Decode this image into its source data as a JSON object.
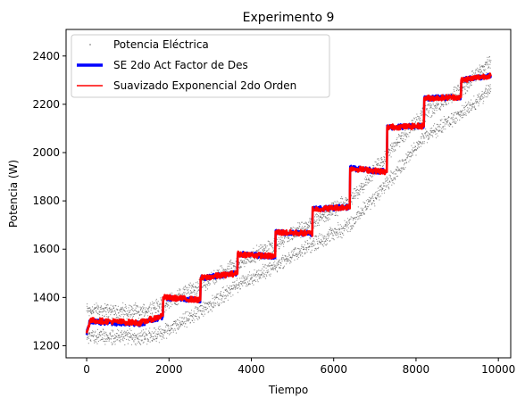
{
  "chart_data": {
    "type": "line",
    "title": "Experimento 9",
    "xlabel": "Tiempo",
    "ylabel": "Potencia (W)",
    "xlim": [
      -500,
      10300
    ],
    "ylim": [
      1150,
      2510
    ],
    "xticks": [
      0,
      2000,
      4000,
      6000,
      8000,
      10000
    ],
    "yticks": [
      1200,
      1400,
      1600,
      1800,
      2000,
      2200,
      2400
    ],
    "grid": false,
    "legend_position": "top-left",
    "step_starts": [
      0,
      1850,
      2760,
      3660,
      4580,
      5480,
      6390,
      7290,
      8190,
      9090
    ],
    "step_ends": [
      1850,
      2760,
      3660,
      4580,
      5480,
      6390,
      7290,
      8190,
      9090,
      9820
    ],
    "series": [
      {
        "name": "Potencia Eléctrica",
        "style": "scatter",
        "color": "#000000",
        "upper_band": [
          [
            0,
            1350
          ],
          [
            1300,
            1340
          ],
          [
            1850,
            1370
          ],
          [
            2760,
            1450
          ],
          [
            3660,
            1540
          ],
          [
            4580,
            1620
          ],
          [
            5480,
            1710
          ],
          [
            6390,
            1800
          ],
          [
            7290,
            1990
          ],
          [
            8190,
            2160
          ],
          [
            9090,
            2260
          ],
          [
            9820,
            2380
          ]
        ],
        "lower_band": [
          [
            0,
            1240
          ],
          [
            1300,
            1235
          ],
          [
            1850,
            1250
          ],
          [
            2760,
            1340
          ],
          [
            3660,
            1450
          ],
          [
            4580,
            1530
          ],
          [
            5480,
            1620
          ],
          [
            6390,
            1700
          ],
          [
            7290,
            1870
          ],
          [
            8190,
            2060
          ],
          [
            9090,
            2160
          ],
          [
            9820,
            2260
          ]
        ]
      },
      {
        "name": "SE 2do Act Factor de Des",
        "style": "line",
        "color": "#0000ff",
        "points": [
          [
            0,
            1250
          ],
          [
            80,
            1300
          ],
          [
            1300,
            1290
          ],
          [
            1850,
            1320
          ],
          [
            1860,
            1400
          ],
          [
            2760,
            1390
          ],
          [
            2770,
            1480
          ],
          [
            3660,
            1500
          ],
          [
            3670,
            1580
          ],
          [
            4580,
            1570
          ],
          [
            4590,
            1670
          ],
          [
            5480,
            1665
          ],
          [
            5490,
            1765
          ],
          [
            6390,
            1775
          ],
          [
            6400,
            1935
          ],
          [
            7290,
            1920
          ],
          [
            7300,
            2105
          ],
          [
            8190,
            2110
          ],
          [
            8200,
            2225
          ],
          [
            9090,
            2230
          ],
          [
            9100,
            2300
          ],
          [
            9820,
            2320
          ]
        ]
      },
      {
        "name": "Suavizado Exponencial 2do Orden",
        "style": "line",
        "color": "#ff0000",
        "points": [
          [
            0,
            1250
          ],
          [
            80,
            1305
          ],
          [
            1300,
            1295
          ],
          [
            1850,
            1325
          ],
          [
            1860,
            1400
          ],
          [
            2760,
            1390
          ],
          [
            2770,
            1480
          ],
          [
            3660,
            1500
          ],
          [
            3670,
            1580
          ],
          [
            4580,
            1570
          ],
          [
            4590,
            1670
          ],
          [
            5480,
            1665
          ],
          [
            5490,
            1765
          ],
          [
            6390,
            1775
          ],
          [
            6400,
            1935
          ],
          [
            7290,
            1920
          ],
          [
            7300,
            2105
          ],
          [
            8190,
            2110
          ],
          [
            8200,
            2225
          ],
          [
            9090,
            2230
          ],
          [
            9100,
            2300
          ],
          [
            9820,
            2320
          ]
        ]
      }
    ]
  }
}
